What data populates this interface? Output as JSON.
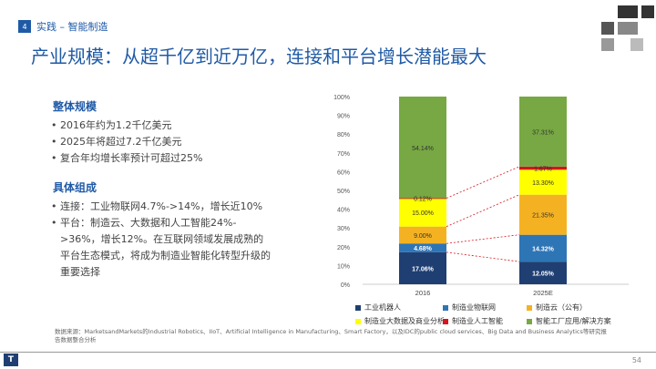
{
  "header": {
    "section_number": "4",
    "section_label": "实践 – 智能制造",
    "title": "产业规模：从超千亿到近万亿，连接和平台增长潜能最大"
  },
  "overall": {
    "heading": "整体规模",
    "bullets": [
      "2016年约为1.2千亿美元",
      "2025年将超过7.2千亿美元",
      "复合年均增长率预计可超过25%"
    ]
  },
  "composition": {
    "heading": "具体组成",
    "bullets": [
      "连接：工业物联网4.7%->14%，增长近10%",
      "平台：制造云、大数据和人工智能24%->36%，增长12%。在互联网领域发展成熟的平台生态模式，将成为制造业智能化转型升级的重要选择"
    ]
  },
  "chart_data": {
    "type": "stacked_bar",
    "categories": [
      "2016",
      "2025E"
    ],
    "y_ticks": [
      "0%",
      "10%",
      "20%",
      "30%",
      "40%",
      "50%",
      "60%",
      "70%",
      "80%",
      "90%",
      "100%"
    ],
    "ylim": [
      0,
      100
    ],
    "series": [
      {
        "name": "工业机器人",
        "color": "#1f3f73",
        "values": [
          17.06,
          12.05
        ],
        "labels": [
          "17.06%",
          "12.05%"
        ],
        "label_color": "#ffffff"
      },
      {
        "name": "制造业物联网",
        "color": "#2e75b6",
        "values": [
          4.68,
          14.32
        ],
        "labels": [
          "4.68%",
          "14.32%"
        ],
        "label_color": "#ffffff"
      },
      {
        "name": "制造云（公有）",
        "color": "#f4b223",
        "values": [
          9.0,
          21.35
        ],
        "labels": [
          "9.00%",
          "21.35%"
        ],
        "label_color": "#333333"
      },
      {
        "name": "制造业大数据及商业分析",
        "color": "#ffff00",
        "values": [
          15.0,
          13.3
        ],
        "labels": [
          "15.00%",
          "13.30%"
        ],
        "label_color": "#333333"
      },
      {
        "name": "制造业人工智能",
        "color": "#d8141c",
        "values": [
          0.12,
          1.67
        ],
        "labels": [
          "0.12%",
          "1.67%"
        ],
        "label_color": "#333333"
      },
      {
        "name": "智能工厂应用/解决方案",
        "color": "#77a843",
        "values": [
          54.14,
          37.31
        ],
        "labels": [
          "54.14%",
          "37.31%"
        ],
        "label_color": "#333333"
      }
    ]
  },
  "source": "数据来源：MarketsandMarkets的Industrial Robotics、IIoT、Artificial Intelligence in Manufacturing、Smart Factory，以及IDC的public cloud services、Big Data and Business Analytics等研究报告数据整合分析",
  "footer": {
    "logo": "T",
    "page": "54"
  }
}
